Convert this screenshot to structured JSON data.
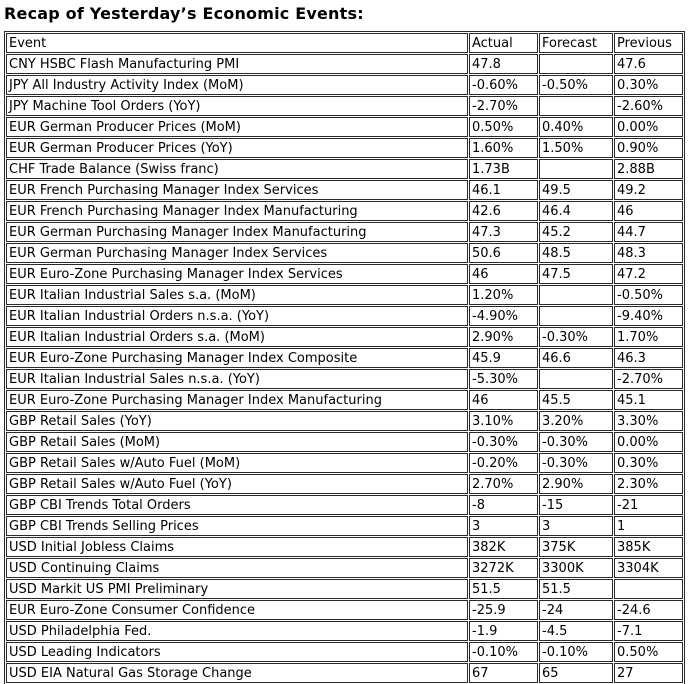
{
  "page_title": "Recap of Yesterday’s Economic Events:",
  "colors": {
    "background": "#ffffff",
    "text": "#000000",
    "table_border": "#2a2a2a"
  },
  "table": {
    "columns": [
      "Event",
      "Actual",
      "Forecast",
      "Previous"
    ],
    "rows": [
      [
        "CNY HSBC Flash Manufacturing PMI",
        "47.8",
        "",
        "47.6"
      ],
      [
        "JPY All Industry Activity Index (MoM)",
        "-0.60%",
        "-0.50%",
        "0.30%"
      ],
      [
        "JPY Machine Tool Orders (YoY)",
        "-2.70%",
        "",
        "-2.60%"
      ],
      [
        "EUR German Producer Prices (MoM)",
        "0.50%",
        "0.40%",
        "0.00%"
      ],
      [
        "EUR German Producer Prices (YoY)",
        "1.60%",
        "1.50%",
        "0.90%"
      ],
      [
        "CHF Trade Balance (Swiss franc)",
        "1.73B",
        "",
        "2.88B"
      ],
      [
        "EUR French Purchasing Manager Index Services",
        "46.1",
        "49.5",
        "49.2"
      ],
      [
        "EUR French Purchasing Manager Index Manufacturing",
        "42.6",
        "46.4",
        "46"
      ],
      [
        "EUR German Purchasing Manager Index Manufacturing",
        "47.3",
        "45.2",
        "44.7"
      ],
      [
        "EUR German Purchasing Manager Index Services",
        "50.6",
        "48.5",
        "48.3"
      ],
      [
        "EUR Euro-Zone Purchasing Manager Index Services",
        "46",
        "47.5",
        "47.2"
      ],
      [
        "EUR Italian Industrial Sales s.a. (MoM)",
        "1.20%",
        "",
        "-0.50%"
      ],
      [
        "EUR Italian Industrial Orders n.s.a. (YoY)",
        "-4.90%",
        "",
        "-9.40%"
      ],
      [
        "EUR Italian Industrial Orders s.a. (MoM)",
        "2.90%",
        "-0.30%",
        "1.70%"
      ],
      [
        "EUR Euro-Zone Purchasing Manager Index Composite",
        "45.9",
        "46.6",
        "46.3"
      ],
      [
        "EUR Italian Industrial Sales n.s.a. (YoY)",
        "-5.30%",
        "",
        "-2.70%"
      ],
      [
        "EUR Euro-Zone Purchasing Manager Index Manufacturing",
        "46",
        "45.5",
        "45.1"
      ],
      [
        "GBP Retail Sales (YoY)",
        "3.10%",
        "3.20%",
        "3.30%"
      ],
      [
        "GBP Retail Sales (MoM)",
        "-0.30%",
        "-0.30%",
        "0.00%"
      ],
      [
        "GBP Retail Sales w/Auto Fuel (MoM)",
        "-0.20%",
        "-0.30%",
        "0.30%"
      ],
      [
        "GBP Retail Sales w/Auto Fuel (YoY)",
        "2.70%",
        "2.90%",
        "2.30%"
      ],
      [
        "GBP CBI Trends Total Orders",
        "-8",
        "-15",
        "-21"
      ],
      [
        "GBP CBI Trends Selling Prices",
        "3",
        "3",
        "1"
      ],
      [
        "USD Initial Jobless Claims",
        "382K",
        "375K",
        "385K"
      ],
      [
        "USD Continuing Claims",
        "3272K",
        "3300K",
        "3304K"
      ],
      [
        "USD Markit US PMI Preliminary",
        "51.5",
        "51.5",
        ""
      ],
      [
        "EUR Euro-Zone Consumer Confidence",
        "-25.9",
        "-24",
        "-24.6"
      ],
      [
        "USD Philadelphia Fed.",
        "-1.9",
        "-4.5",
        "-7.1"
      ],
      [
        "USD Leading Indicators",
        "-0.10%",
        "-0.10%",
        "0.50%"
      ],
      [
        "USD EIA Natural Gas Storage Change",
        "67",
        "65",
        "27"
      ]
    ]
  }
}
